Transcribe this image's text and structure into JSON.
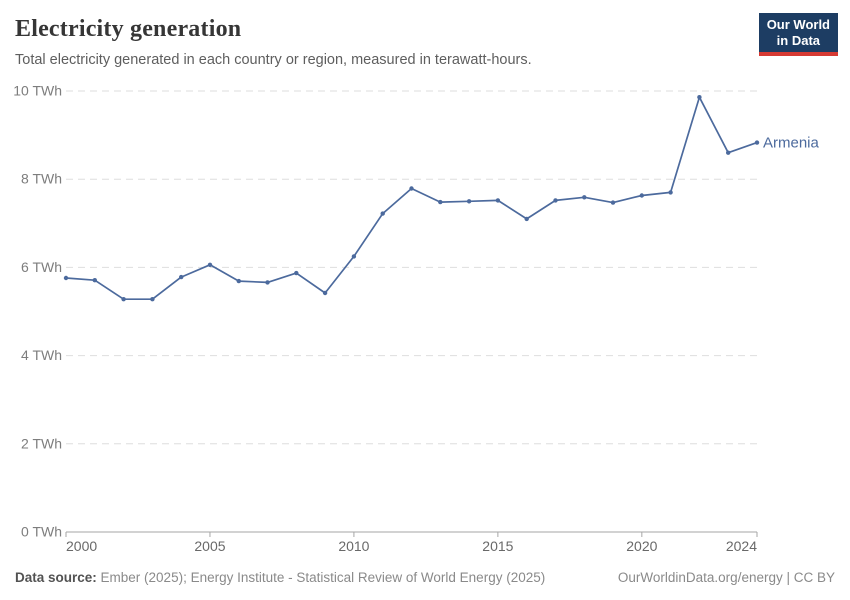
{
  "header": {
    "title": "Electricity generation",
    "subtitle": "Total electricity generated in each country or region, measured in terawatt-hours.",
    "logo": {
      "line1": "Our World",
      "line2": "in Data",
      "background_color": "#1d3d63",
      "accent_color": "#d63a33"
    }
  },
  "chart_data": {
    "type": "line",
    "title": "Electricity generation",
    "subtitle": "Total electricity generated in each country or region, measured in terawatt-hours.",
    "unit": "TWh",
    "xlim": [
      2000,
      2024
    ],
    "ylim": [
      0,
      10
    ],
    "x_ticks": [
      2000,
      2005,
      2010,
      2015,
      2020,
      2024
    ],
    "y_ticks": [
      0,
      2,
      4,
      6,
      8,
      10
    ],
    "y_tick_unit_suffix": " TWh",
    "grid": "horizontal dashed",
    "legend": "end-of-line label",
    "x": [
      2000,
      2001,
      2002,
      2003,
      2004,
      2005,
      2006,
      2007,
      2008,
      2009,
      2010,
      2011,
      2012,
      2013,
      2014,
      2015,
      2016,
      2017,
      2018,
      2019,
      2020,
      2021,
      2022,
      2023,
      2024
    ],
    "series": [
      {
        "name": "Armenia",
        "color": "#4c6a9d",
        "values": [
          5.76,
          5.71,
          5.28,
          5.28,
          5.78,
          6.06,
          5.69,
          5.66,
          5.87,
          5.42,
          6.25,
          7.22,
          7.79,
          7.48,
          7.5,
          7.52,
          7.1,
          7.52,
          7.59,
          7.47,
          7.63,
          7.7,
          9.86,
          8.6,
          8.83
        ]
      }
    ],
    "colors": {
      "gridline": "#dedede",
      "axis_line": "#a6a6a6",
      "y_tick_label": "#7d7d7d",
      "x_tick_label": "#696969"
    }
  },
  "footer": {
    "source_label": "Data source:",
    "source_text": " Ember (2025); Energy Institute - Statistical Review of World Energy (2025)",
    "attribution": "OurWorldinData.org/energy | CC BY"
  }
}
